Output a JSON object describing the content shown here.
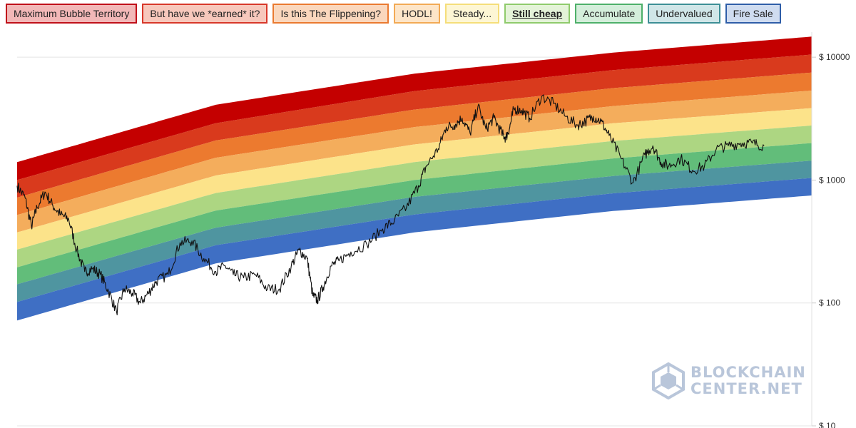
{
  "legend": [
    {
      "label": "Maximum Bubble Territory",
      "border": "#c0101a",
      "fill": "#f2b8b8"
    },
    {
      "label": "But have we *earned* it?",
      "border": "#d8382a",
      "fill": "#f7c8bc"
    },
    {
      "label": "Is this The Flippening?",
      "border": "#ea7a30",
      "fill": "#fad7bd"
    },
    {
      "label": "HODL!",
      "border": "#f2aa55",
      "fill": "#fde5c8"
    },
    {
      "label": "Steady...",
      "border": "#f5de7a",
      "fill": "#fdf6d4"
    },
    {
      "label": "Still cheap",
      "border": "#8fcb6c",
      "fill": "#e4f3d8",
      "active": true
    },
    {
      "label": "Accumulate",
      "border": "#4eb06a",
      "fill": "#d4eedb"
    },
    {
      "label": "Undervalued",
      "border": "#3d8f96",
      "fill": "#d0e6e8"
    },
    {
      "label": "Fire Sale",
      "border": "#2f5ea8",
      "fill": "#cfdcf0"
    }
  ],
  "chart_data": {
    "type": "area",
    "scale": "log",
    "ylim": [
      10,
      16000
    ],
    "xlim": [
      0,
      1
    ],
    "y_ticks": [
      {
        "value": 10,
        "label": "$ 10"
      },
      {
        "value": 100,
        "label": "$ 100"
      },
      {
        "value": 1000,
        "label": "$ 1000"
      },
      {
        "value": 10000,
        "label": "$ 10000"
      }
    ],
    "grid": true,
    "band_colors": [
      "#c40000",
      "#d93a1d",
      "#ec7a2f",
      "#f4ad5c",
      "#fce38a",
      "#add682",
      "#62bd7a",
      "#4f95a0",
      "#3f6fc4"
    ],
    "band_boundaries": [
      {
        "x": [
          0.0,
          0.25,
          0.5,
          0.75,
          1.0
        ],
        "values": [
          1400,
          4100,
          7350,
          10900,
          14700
        ]
      },
      {
        "x": [
          0.0,
          0.25,
          0.5,
          0.75,
          1.0
        ],
        "values": [
          1000,
          2900,
          5300,
          7850,
          10500
        ]
      },
      {
        "x": [
          0.0,
          0.25,
          0.5,
          0.75,
          1.0
        ],
        "values": [
          720,
          2100,
          3750,
          5600,
          7500
        ]
      },
      {
        "x": [
          0.0,
          0.25,
          0.5,
          0.75,
          1.0
        ],
        "values": [
          520,
          1520,
          2700,
          4000,
          5350
        ]
      },
      {
        "x": [
          0.0,
          0.25,
          0.5,
          0.75,
          1.0
        ],
        "values": [
          375,
          1090,
          1950,
          2900,
          3850
        ]
      },
      {
        "x": [
          0.0,
          0.25,
          0.5,
          0.75,
          1.0
        ],
        "values": [
          272,
          785,
          1400,
          2080,
          2780
        ]
      },
      {
        "x": [
          0.0,
          0.25,
          0.5,
          0.75,
          1.0
        ],
        "values": [
          195,
          565,
          1000,
          1500,
          2000
        ]
      },
      {
        "x": [
          0.0,
          0.25,
          0.5,
          0.75,
          1.0
        ],
        "values": [
          142,
          410,
          730,
          1080,
          1440
        ]
      },
      {
        "x": [
          0.0,
          0.25,
          0.5,
          0.75,
          1.0
        ],
        "values": [
          102,
          295,
          525,
          780,
          1040
        ]
      },
      {
        "x": [
          0.0,
          0.25,
          0.5,
          0.75,
          1.0
        ],
        "values": [
          72,
          210,
          375,
          560,
          750
        ]
      }
    ],
    "price_series": {
      "x": [
        0.0,
        0.01,
        0.018,
        0.025,
        0.035,
        0.045,
        0.055,
        0.065,
        0.075,
        0.085,
        0.095,
        0.105,
        0.115,
        0.125,
        0.135,
        0.145,
        0.155,
        0.165,
        0.175,
        0.19,
        0.205,
        0.22,
        0.235,
        0.25,
        0.262,
        0.272,
        0.285,
        0.3,
        0.315,
        0.33,
        0.345,
        0.355,
        0.365,
        0.372,
        0.378,
        0.385,
        0.395,
        0.405,
        0.42,
        0.44,
        0.46,
        0.475,
        0.49,
        0.505,
        0.515,
        0.53,
        0.54,
        0.55,
        0.56,
        0.57,
        0.58,
        0.59,
        0.6,
        0.61,
        0.615,
        0.62,
        0.625,
        0.635,
        0.645,
        0.66,
        0.675,
        0.69,
        0.705,
        0.715,
        0.725,
        0.735,
        0.745,
        0.76,
        0.775,
        0.79,
        0.8,
        0.81,
        0.82,
        0.835,
        0.85,
        0.865,
        0.88,
        0.895,
        0.91,
        0.925,
        0.94
      ],
      "values": [
        900,
        720,
        420,
        600,
        800,
        620,
        520,
        480,
        270,
        180,
        190,
        170,
        125,
        85,
        130,
        120,
        100,
        120,
        150,
        170,
        310,
        320,
        230,
        180,
        200,
        170,
        160,
        170,
        130,
        130,
        200,
        270,
        230,
        115,
        105,
        135,
        200,
        220,
        260,
        300,
        400,
        470,
        600,
        900,
        1300,
        1800,
        2700,
        2800,
        3200,
        2400,
        4000,
        2600,
        3200,
        2400,
        2200,
        2700,
        3800,
        3700,
        3200,
        4800,
        4200,
        3300,
        2800,
        3000,
        3300,
        3000,
        2300,
        1500,
        950,
        1600,
        1900,
        1400,
        1300,
        1500,
        1200,
        1300,
        1800,
        1900,
        2000,
        2000,
        1900
      ]
    }
  },
  "watermark": {
    "line1": "BLOCKCHAIN",
    "line2": "CENTER.NET"
  }
}
